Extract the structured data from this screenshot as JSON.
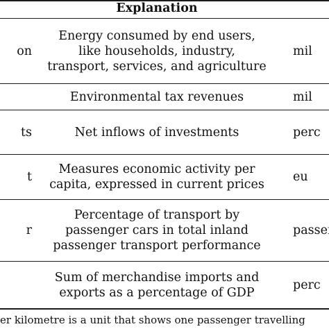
{
  "table": {
    "header": "Explanation",
    "rows": [
      {
        "col1": "on",
        "explanation": [
          "Energy consumed by end users,",
          "like households, industry,",
          "transport, services, and agriculture"
        ],
        "col3": "mil"
      },
      {
        "col1": "",
        "explanation": [
          "Environmental tax revenues"
        ],
        "col3": "mil"
      },
      {
        "col1": "ts",
        "explanation": [
          "Net inflows of investments"
        ],
        "col3": "perc"
      },
      {
        "col1": "t",
        "explanation": [
          "Measures economic activity per",
          "capita, expressed in current prices"
        ],
        "col3": "eu"
      },
      {
        "col1": "r",
        "explanation": [
          "Percentage of transport by",
          "passenger cars in total inland",
          "passenger transport performance"
        ],
        "col3": "passen"
      },
      {
        "col1": "",
        "explanation": [
          "Sum of merchandise imports and",
          "exports as a percentage of GDP"
        ],
        "col3": "perc"
      }
    ],
    "footnote": "er kilometre is a unit that shows one passenger travelling"
  }
}
